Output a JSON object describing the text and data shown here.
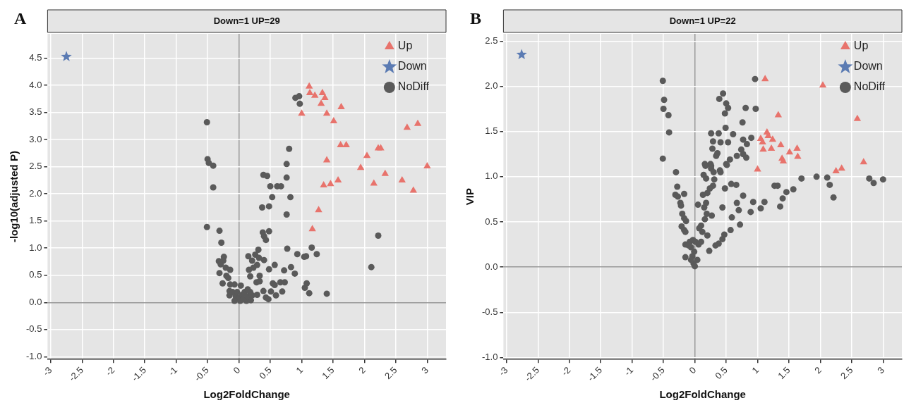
{
  "chart_data": [
    {
      "type": "scatter",
      "title": "Down=1 UP=29",
      "xlabel": "Log2FoldChange",
      "ylabel": "-log10(adjusted P)",
      "annotations": [
        "A"
      ],
      "xlim": [
        -3.05,
        3.3
      ],
      "ylim": [
        -1.05,
        4.95
      ],
      "xticks": [
        -3,
        -2.5,
        -2,
        -1.5,
        -1,
        -0.5,
        0,
        0.5,
        1,
        1.5,
        2,
        2.5,
        3
      ],
      "yticks": [
        {
          "value": -1,
          "label": "-1.0"
        },
        -0.5,
        {
          "value": 0,
          "label": "0.0"
        },
        0.5,
        {
          "value": 1,
          "label": "1.0"
        },
        1.5,
        {
          "value": 2,
          "label": "2.0"
        },
        2.5,
        {
          "value": 3,
          "label": "3.0"
        },
        3.5,
        {
          "value": 4,
          "label": "4.0"
        },
        4.5
      ],
      "grid": true,
      "legend": "top right",
      "series": [
        {
          "name": "Up",
          "color": "#e8736c",
          "marker": "triangle",
          "x": [
            1.12,
            1.13,
            1.21,
            1.33,
            1.37,
            1.31,
            1.0,
            1.4,
            1.63,
            1.51,
            2.68,
            2.85,
            1.62,
            1.71,
            2.22,
            2.26,
            2.04,
            1.4,
            1.94,
            3.0,
            2.33,
            2.6,
            1.58,
            1.35,
            1.46,
            2.15,
            2.78,
            1.27,
            1.17
          ],
          "values": [
            3.98,
            3.86,
            3.81,
            3.86,
            3.77,
            3.66,
            3.48,
            3.48,
            3.6,
            3.34,
            3.22,
            3.29,
            2.9,
            2.9,
            2.84,
            2.84,
            2.7,
            2.62,
            2.48,
            2.51,
            2.37,
            2.25,
            2.25,
            2.16,
            2.18,
            2.19,
            2.06,
            1.7,
            1.35
          ]
        },
        {
          "name": "Down",
          "color": "#5b7bb3",
          "marker": "star",
          "x": [
            -2.75
          ],
          "values": [
            4.53
          ]
        },
        {
          "name": "NoDiff",
          "color": "#5a5a5a",
          "marker": "circle",
          "x": [
            0.9,
            0.96,
            0.97,
            -0.51,
            0.8,
            -0.5,
            -0.48,
            -0.41,
            0.76,
            -0.41,
            0.39,
            0.45,
            0.76,
            0.5,
            0.61,
            0.67,
            0.53,
            0.82,
            0.37,
            0.48,
            0.76,
            -0.51,
            -0.31,
            -0.28,
            0.38,
            0.4,
            0.43,
            0.48,
            0.77,
            1.16,
            1.24,
            0.93,
            1.04,
            1.07,
            2.22,
            2.11,
            0.83,
            0.89,
            0.72,
            0.57,
            0.48,
            0.4,
            0.31,
            0.26,
            0.32,
            0.21,
            0.15,
            0.29,
            0.23,
            0.16,
            0.33,
            0.18,
            0.28,
            0.33,
            0.54,
            0.57,
            0.66,
            0.73,
            1.08,
            1.05,
            1.12,
            1.4,
            0.39,
            0.51,
            0.69,
            0.59,
            0.43,
            0.47,
            0.29,
            -0.32,
            -0.24,
            -0.25,
            -0.29,
            -0.21,
            -0.14,
            -0.2,
            -0.17,
            -0.31,
            -0.26,
            -0.14,
            -0.07,
            0.03,
            -0.15,
            -0.15,
            -0.1,
            -0.05,
            0.0,
            0.05,
            0.09,
            0.14,
            0.18,
            -0.07,
            0.02,
            0.12,
            0.19,
            0.07,
            -0.03,
            0.14,
            0.21
          ],
          "values": [
            3.77,
            3.8,
            3.66,
            3.32,
            2.83,
            2.64,
            2.57,
            2.52,
            2.55,
            2.12,
            2.35,
            2.33,
            2.3,
            2.14,
            2.14,
            2.14,
            1.94,
            1.94,
            1.75,
            1.77,
            1.62,
            1.39,
            1.32,
            1.1,
            1.29,
            1.22,
            1.15,
            1.31,
            0.99,
            1.01,
            0.89,
            0.89,
            0.84,
            0.85,
            1.23,
            0.65,
            0.65,
            0.53,
            0.59,
            0.69,
            0.61,
            0.78,
            0.97,
            0.88,
            0.82,
            0.77,
            0.85,
            0.69,
            0.64,
            0.6,
            0.49,
            0.48,
            0.37,
            0.39,
            0.35,
            0.32,
            0.37,
            0.37,
            0.35,
            0.27,
            0.17,
            0.16,
            0.21,
            0.2,
            0.2,
            0.13,
            0.09,
            0.06,
            0.14,
            0.76,
            0.84,
            0.77,
            0.7,
            0.64,
            0.6,
            0.49,
            0.45,
            0.54,
            0.35,
            0.33,
            0.33,
            0.31,
            0.21,
            0.13,
            0.19,
            0.11,
            0.08,
            0.14,
            0.19,
            0.24,
            0.19,
            0.03,
            0.03,
            0.03,
            0.04,
            0.06,
            0.19,
            0.11,
            0.13
          ]
        }
      ]
    },
    {
      "type": "scatter",
      "title": "Down=1 UP=22",
      "xlabel": "Log2FoldChange",
      "ylabel": "VIP",
      "annotations": [
        "B"
      ],
      "xlim": [
        -3.05,
        3.3
      ],
      "ylim": [
        -1.02,
        2.58
      ],
      "xticks": [
        -3,
        -2.5,
        -2,
        -1.5,
        -1,
        -0.5,
        0,
        0.5,
        1,
        1.5,
        2,
        2.5,
        3
      ],
      "yticks": [
        {
          "value": -1,
          "label": "-1.0"
        },
        -0.5,
        {
          "value": 0,
          "label": "0.0"
        },
        0.5,
        {
          "value": 1,
          "label": "1.0"
        },
        1.5,
        {
          "value": 2,
          "label": "2.0"
        },
        2.5
      ],
      "grid": true,
      "legend": "top right",
      "series": [
        {
          "name": "Up",
          "color": "#e8736c",
          "marker": "triangle",
          "x": [
            1.12,
            2.04,
            1.33,
            2.59,
            1.15,
            1.17,
            1.05,
            1.24,
            1.08,
            1.37,
            1.09,
            1.22,
            1.51,
            1.63,
            1.64,
            1.39,
            1.41,
            2.69,
            1.0,
            2.25,
            2.34
          ],
          "values": [
            2.08,
            2.01,
            1.68,
            1.64,
            1.49,
            1.45,
            1.42,
            1.41,
            1.38,
            1.35,
            1.3,
            1.31,
            1.27,
            1.31,
            1.22,
            1.2,
            1.17,
            1.16,
            1.08,
            1.06,
            1.09
          ]
        },
        {
          "name": "Down",
          "color": "#5b7bb3",
          "marker": "star",
          "x": [
            -2.76
          ],
          "values": [
            2.35
          ]
        },
        {
          "name": "NoDiff",
          "color": "#5a5a5a",
          "marker": "circle",
          "x": [
            -0.51,
            0.96,
            0.45,
            0.39,
            0.5,
            0.53,
            0.48,
            -0.49,
            -0.5,
            -0.42,
            0.81,
            0.97,
            0.76,
            0.49,
            -0.41,
            0.26,
            0.38,
            0.61,
            0.29,
            0.41,
            0.53,
            0.77,
            0.9,
            0.83,
            0.28,
            0.74,
            0.77,
            0.36,
            0.34,
            0.67,
            0.82,
            0.56,
            0.5,
            -0.51,
            0.16,
            0.25,
            0.26,
            0.4,
            -0.3,
            0.17,
            0.26,
            0.3,
            0.41,
            0.51,
            0.14,
            0.18,
            0.31,
            0.29,
            0.24,
            0.58,
            0.66,
            0.48,
            1.7,
            1.94,
            2.11,
            2.15,
            1.27,
            1.32,
            1.57,
            1.46,
            2.78,
            2.85,
            3.0,
            2.21,
            1.4,
            1.36,
            0.77,
            0.67,
            0.7,
            0.93,
            1.11,
            1.05,
            0.89,
            0.44,
            0.59,
            0.72,
            0.57,
            0.47,
            0.44,
            0.38,
            0.33,
            0.23,
            0.27,
            0.19,
            0.15,
            0.18,
            0.13,
            0.2,
            0.05,
            0.16,
            0.1,
            0.07,
            0.12,
            0.2,
            0.1,
            -0.28,
            -0.31,
            -0.27,
            -0.17,
            -0.23,
            -0.22,
            -0.2,
            -0.17,
            -0.14,
            -0.21,
            -0.17,
            -0.15,
            -0.15,
            -0.15,
            -0.08,
            -0.03,
            0.01,
            -0.06,
            -0.01,
            -0.04,
            0.04,
            -0.02,
            0.0,
            -0.06,
            -0.1,
            0.06
          ],
          "values": [
            2.06,
            2.08,
            1.92,
            1.86,
            1.81,
            1.76,
            1.7,
            1.85,
            1.75,
            1.68,
            1.76,
            1.75,
            1.6,
            1.54,
            1.49,
            1.48,
            1.48,
            1.47,
            1.39,
            1.38,
            1.38,
            1.41,
            1.43,
            1.36,
            1.31,
            1.3,
            1.25,
            1.26,
            1.23,
            1.23,
            1.21,
            1.19,
            1.14,
            1.2,
            1.14,
            1.14,
            1.09,
            1.07,
            1.05,
            1.12,
            1.12,
            1.05,
            1.05,
            1.13,
            1.02,
            0.98,
            0.97,
            0.9,
            0.87,
            0.92,
            0.91,
            0.87,
            0.98,
            1.0,
            0.99,
            0.91,
            0.9,
            0.9,
            0.86,
            0.83,
            0.98,
            0.93,
            0.97,
            0.77,
            0.76,
            0.67,
            0.79,
            0.71,
            0.63,
            0.72,
            0.72,
            0.65,
            0.61,
            0.66,
            0.55,
            0.47,
            0.41,
            0.36,
            0.31,
            0.26,
            0.24,
            0.18,
            0.57,
            0.59,
            0.66,
            0.71,
            0.8,
            0.82,
            0.69,
            0.53,
            0.46,
            0.43,
            0.39,
            0.35,
            0.28,
            0.89,
            0.8,
            0.78,
            0.81,
            0.71,
            0.68,
            0.59,
            0.54,
            0.51,
            0.45,
            0.41,
            0.39,
            0.25,
            0.11,
            0.28,
            0.3,
            0.28,
            0.22,
            0.17,
            0.12,
            0.08,
            0.04,
            0.01,
            0.08,
            0.24,
            0.25
          ]
        }
      ]
    }
  ]
}
